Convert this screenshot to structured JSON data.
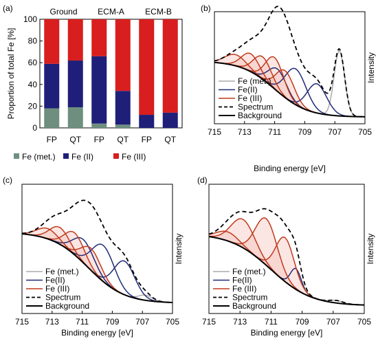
{
  "chart_data": [
    {
      "panel": "(a)",
      "type": "bar",
      "stacked": true,
      "groups": [
        "Ground",
        "ECM-A",
        "ECM-B"
      ],
      "categories": [
        "FP",
        "QT",
        "FP",
        "QT",
        "FP",
        "QT"
      ],
      "ylabel": "Proportion of total Fe [%]",
      "ylim": [
        0,
        100
      ],
      "yticks": [
        0,
        20,
        40,
        60,
        80,
        100
      ],
      "legend_position": "bottom",
      "series": [
        {
          "name": "Fe (met.)",
          "color": "#6e8f7f",
          "values": [
            18,
            19,
            4,
            3,
            0,
            0
          ]
        },
        {
          "name": "Fe (II)",
          "color": "#1f1f7a",
          "values": [
            41,
            43,
            62,
            31,
            12,
            14
          ]
        },
        {
          "name": "Fe (III)",
          "color": "#d81e1e",
          "values": [
            41,
            38,
            34,
            66,
            88,
            86
          ]
        }
      ]
    },
    {
      "panel": "(b)",
      "type": "line",
      "xlabel": "Binding energy [eV]",
      "ylabel": "Intensity",
      "xlim": [
        715,
        705
      ],
      "xticks": [
        715,
        713,
        711,
        709,
        707,
        705
      ],
      "ylim": [
        0,
        1
      ],
      "legend_position": "bottom-left",
      "background": {
        "name": "Background",
        "color": "#000000",
        "start": 0.56,
        "mid": 711,
        "end": 0.06,
        "steep": 1.1
      },
      "components": [
        {
          "name": "Fe (met.)",
          "color": "#aaaaaa",
          "peaks": [
            {
              "center": 706.7,
              "amp": 0.58,
              "width": 0.35
            }
          ]
        },
        {
          "name": "Fe(II)",
          "color": "#1f2a78",
          "peaks": [
            {
              "center": 710.8,
              "amp": 0.2,
              "width": 0.6
            },
            {
              "center": 709.6,
              "amp": 0.32,
              "width": 0.7
            },
            {
              "center": 708.2,
              "amp": 0.26,
              "width": 0.65
            }
          ]
        },
        {
          "name": "Fe (III)",
          "color": "#c0391b",
          "peaks": [
            {
              "center": 713.6,
              "amp": 0.1,
              "width": 0.7
            },
            {
              "center": 712.6,
              "amp": 0.16,
              "width": 0.6
            },
            {
              "center": 711.8,
              "amp": 0.2,
              "width": 0.6
            },
            {
              "center": 711.0,
              "amp": 0.28,
              "width": 0.6
            },
            {
              "center": 710.3,
              "amp": 0.24,
              "width": 0.6
            }
          ]
        }
      ],
      "spectrum": {
        "name": "Spectrum",
        "color": "#000000",
        "dashed": true
      }
    },
    {
      "panel": "(c)",
      "type": "line",
      "xlabel": "Binding energy [eV]",
      "ylabel": "Intensity",
      "xlim": [
        715,
        705
      ],
      "xticks": [
        715,
        713,
        711,
        709,
        707,
        705
      ],
      "ylim": [
        0,
        1
      ],
      "legend_position": "bottom-left",
      "background": {
        "name": "Background",
        "color": "#000000",
        "start": 0.63,
        "mid": 710.6,
        "end": 0.08,
        "steep": 1.2
      },
      "components": [
        {
          "name": "Fe (met.)",
          "color": "#aaaaaa",
          "peaks": [
            {
              "center": 706.8,
              "amp": 0.04,
              "width": 0.45
            }
          ]
        },
        {
          "name": "Fe(II)",
          "color": "#1f2a78",
          "peaks": [
            {
              "center": 710.9,
              "amp": 0.18,
              "width": 0.7
            },
            {
              "center": 709.6,
              "amp": 0.28,
              "width": 0.75
            },
            {
              "center": 708.2,
              "amp": 0.26,
              "width": 0.7
            }
          ]
        },
        {
          "name": "Fe (III)",
          "color": "#c0391b",
          "peaks": [
            {
              "center": 713.3,
              "amp": 0.08,
              "width": 0.7
            },
            {
              "center": 712.5,
              "amp": 0.13,
              "width": 0.65
            },
            {
              "center": 711.5,
              "amp": 0.17,
              "width": 0.65
            },
            {
              "center": 710.4,
              "amp": 0.17,
              "width": 0.65
            }
          ]
        }
      ],
      "spectrum": {
        "name": "Spectrum",
        "color": "#000000",
        "dashed": true
      }
    },
    {
      "panel": "(d)",
      "type": "line",
      "xlabel": "Binding energy [eV]",
      "ylabel": "Intensity",
      "xlim": [
        715,
        705
      ],
      "xticks": [
        715,
        713,
        711,
        709,
        707,
        705
      ],
      "ylim": [
        0,
        1
      ],
      "legend_position": "bottom-left",
      "background": {
        "name": "Background",
        "color": "#000000",
        "start": 0.62,
        "mid": 711,
        "end": 0.06,
        "steep": 1.3
      },
      "components": [
        {
          "name": "Fe (met.)",
          "color": "#aaaaaa",
          "peaks": [
            {
              "center": 706.8,
              "amp": 0.02,
              "width": 0.45
            }
          ]
        },
        {
          "name": "Fe(II)",
          "color": "#1f2a78",
          "peaks": [
            {
              "center": 709.4,
              "amp": 0.16,
              "width": 0.35
            }
          ]
        },
        {
          "name": "Fe (III)",
          "color": "#c0391b",
          "peaks": [
            {
              "center": 713.8,
              "amp": 0.07,
              "width": 0.7
            },
            {
              "center": 712.8,
              "amp": 0.22,
              "width": 0.75
            },
            {
              "center": 711.3,
              "amp": 0.36,
              "width": 0.7
            },
            {
              "center": 710.1,
              "amp": 0.34,
              "width": 0.6
            }
          ]
        }
      ],
      "spectrum": {
        "name": "Spectrum",
        "color": "#000000",
        "dashed": true
      }
    }
  ]
}
